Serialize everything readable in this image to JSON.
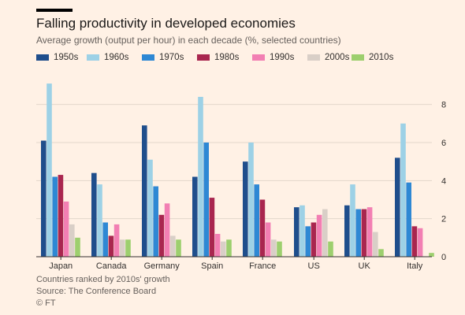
{
  "title": "Falling productivity in developed economies",
  "subtitle": "Average growth (output per hour) in each decade (%, selected countries)",
  "footer": {
    "note": "Countries ranked by 2010s' growth",
    "source": "Source: The Conference Board",
    "credit": "© FT"
  },
  "colors": {
    "background": "#fff1e5",
    "grid": "#e3d6cb",
    "axis": "#33302e"
  },
  "chart_data": {
    "type": "bar",
    "categories": [
      "Japan",
      "Canada",
      "Germany",
      "Spain",
      "France",
      "US",
      "UK",
      "Italy"
    ],
    "series": [
      {
        "name": "1950s",
        "color": "#1f4e8c",
        "values": [
          6.1,
          4.4,
          6.9,
          4.2,
          5.0,
          2.6,
          2.7,
          5.2
        ]
      },
      {
        "name": "1960s",
        "color": "#9dd1e6",
        "values": [
          9.1,
          3.8,
          5.1,
          8.4,
          6.0,
          2.7,
          3.8,
          7.0
        ]
      },
      {
        "name": "1970s",
        "color": "#2e88d4",
        "values": [
          4.2,
          1.8,
          3.7,
          6.0,
          3.8,
          1.6,
          2.5,
          3.9
        ]
      },
      {
        "name": "1980s",
        "color": "#a9264f",
        "values": [
          4.3,
          1.1,
          2.2,
          3.1,
          3.0,
          1.8,
          2.5,
          1.6
        ]
      },
      {
        "name": "1990s",
        "color": "#f27fb3",
        "values": [
          2.9,
          1.7,
          2.8,
          1.2,
          1.8,
          2.2,
          2.6,
          1.5
        ]
      },
      {
        "name": "2000s",
        "color": "#d9cfc7",
        "values": [
          1.7,
          0.9,
          1.1,
          0.8,
          0.9,
          2.5,
          1.3,
          0.0
        ]
      },
      {
        "name": "2010s",
        "color": "#9dcf6e",
        "values": [
          1.0,
          0.9,
          0.9,
          0.9,
          0.8,
          0.8,
          0.4,
          0.2
        ]
      }
    ],
    "yticks": [
      0,
      2,
      4,
      6,
      8
    ],
    "ylim": [
      0,
      9.6
    ],
    "y_axis_side": "right",
    "grid": true,
    "legend_position": "top"
  }
}
